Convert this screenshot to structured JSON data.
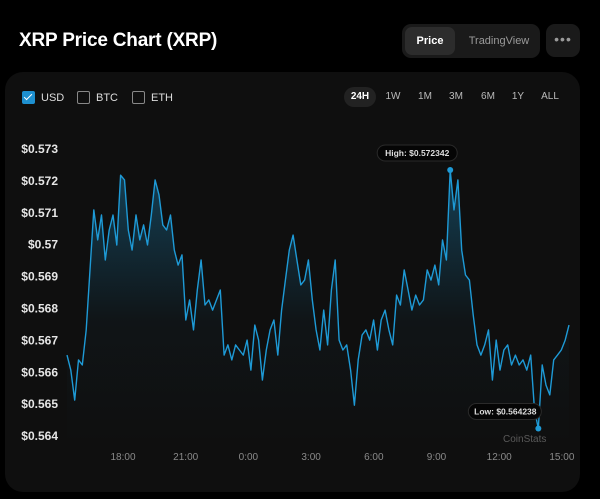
{
  "header": {
    "title": "XRP Price Chart (XRP)",
    "tabs": [
      "Price",
      "TradingView"
    ],
    "active_tab": "Price",
    "more_icon": "ellipsis-icon"
  },
  "currencies": [
    {
      "label": "USD",
      "checked": true
    },
    {
      "label": "BTC",
      "checked": false
    },
    {
      "label": "ETH",
      "checked": false
    }
  ],
  "ranges": [
    "24H",
    "1W",
    "1M",
    "3M",
    "6M",
    "1Y",
    "ALL"
  ],
  "active_range": "24H",
  "watermark": "CoinStats",
  "colors": {
    "line": "#1e9ad6",
    "background": "#0f0f0f",
    "accent": "#1e90d0"
  },
  "chart_data": {
    "type": "area",
    "title": "",
    "xlabel": "",
    "ylabel": "",
    "x_ticks": [
      "18:00",
      "21:00",
      "0:00",
      "3:00",
      "6:00",
      "9:00",
      "12:00",
      "15:00"
    ],
    "x_range": [
      "15:20",
      "15:20 (+1d)"
    ],
    "y_ticks": [
      "$0.573",
      "$0.572",
      "$0.571",
      "$0.57",
      "$0.569",
      "$0.568",
      "$0.567",
      "$0.566",
      "$0.565",
      "$0.564"
    ],
    "ylim": [
      0.5637,
      0.5736
    ],
    "grid": false,
    "high": {
      "label": "High: $0.572342",
      "value": 0.572342
    },
    "low": {
      "label": "Low: $0.564238",
      "value": 0.564238
    },
    "values": [
      0.56654,
      0.56607,
      0.56513,
      0.56639,
      0.56623,
      0.56733,
      0.56921,
      0.57109,
      0.57015,
      0.57093,
      0.56952,
      0.57046,
      0.57093,
      0.56999,
      0.57218,
      0.57203,
      0.57046,
      0.56983,
      0.57093,
      0.57015,
      0.57062,
      0.56999,
      0.57093,
      0.57203,
      0.57156,
      0.57062,
      0.57046,
      0.57093,
      0.56983,
      0.56936,
      0.56968,
      0.56764,
      0.56827,
      0.56733,
      0.56858,
      0.56952,
      0.56811,
      0.56827,
      0.56795,
      0.56827,
      0.56858,
      0.56654,
      0.56686,
      0.56639,
      0.56686,
      0.5667,
      0.56654,
      0.56701,
      0.56607,
      0.56748,
      0.56701,
      0.56576,
      0.5667,
      0.56733,
      0.56764,
      0.56654,
      0.56795,
      0.56889,
      0.56983,
      0.5703,
      0.56952,
      0.56874,
      0.56889,
      0.56952,
      0.56827,
      0.56733,
      0.5667,
      0.56795,
      0.56686,
      0.56858,
      0.56952,
      0.56701,
      0.5667,
      0.56686,
      0.56607,
      0.56497,
      0.56639,
      0.56717,
      0.56733,
      0.56701,
      0.56764,
      0.5667,
      0.56764,
      0.56795,
      0.56733,
      0.56686,
      0.56842,
      0.56811,
      0.56921,
      0.56858,
      0.56795,
      0.56842,
      0.56811,
      0.56827,
      0.56921,
      0.56889,
      0.56936,
      0.56874,
      0.57015,
      0.56952,
      0.572342,
      0.57109,
      0.57203,
      0.56983,
      0.56905,
      0.56889,
      0.5678,
      0.56686,
      0.56654,
      0.56686,
      0.56733,
      0.56576,
      0.56701,
      0.56607,
      0.5667,
      0.56686,
      0.56623,
      0.56654,
      0.56623,
      0.56639,
      0.56607,
      0.56654,
      0.56482,
      0.564238,
      0.56623,
      0.5656,
      0.56529,
      0.56639,
      0.56654,
      0.5667,
      0.56701,
      0.56748
    ]
  }
}
